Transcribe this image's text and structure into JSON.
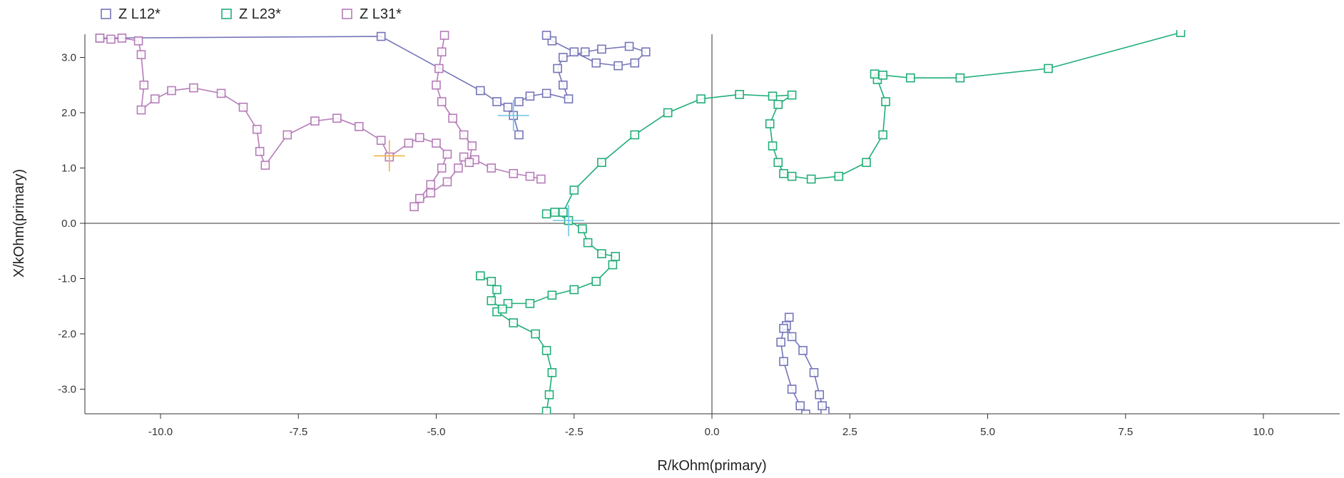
{
  "chart_data": {
    "type": "scatter",
    "title": "",
    "xlabel": "R/kOhm(primary)",
    "ylabel": "X/kOhm(primary)",
    "xlim": [
      -11.3,
      11.3
    ],
    "ylim": [
      -3.45,
      3.45
    ],
    "x_ticks": [
      "-10.0",
      "-7.5",
      "-5.0",
      "-2.5",
      "0.0",
      "2.5",
      "5.0",
      "7.5",
      "10.0"
    ],
    "x_tick_values": [
      -10,
      -7.5,
      -5,
      -2.5,
      0,
      2.5,
      5,
      7.5,
      10
    ],
    "y_ticks": [
      "3.0",
      "2.0",
      "1.0",
      "0.0",
      "-1.0",
      "-2.0",
      "-3.0"
    ],
    "y_tick_values": [
      3,
      2,
      1,
      0,
      -1,
      -2,
      -3
    ],
    "grid": false,
    "zero_lines": true,
    "legend_position": "top-left",
    "series": [
      {
        "name": "Z L12*",
        "color": "#7575b8",
        "marker": "square",
        "end_marker": {
          "x": -3.6,
          "y": 1.95,
          "color": "#6ec6e6"
        },
        "segments": [
          [
            [
              -11.1,
              3.35
            ],
            [
              -6.0,
              3.38
            ],
            [
              -4.2,
              2.4
            ],
            [
              -3.9,
              2.2
            ],
            [
              -3.7,
              2.1
            ],
            [
              -3.6,
              1.95
            ],
            [
              -3.5,
              1.6
            ]
          ],
          [
            [
              -3.5,
              2.2
            ],
            [
              -3.3,
              2.3
            ],
            [
              -3.0,
              2.35
            ],
            [
              -2.6,
              2.25
            ],
            [
              -2.7,
              2.5
            ],
            [
              -2.8,
              2.8
            ],
            [
              -2.7,
              3.0
            ],
            [
              -2.3,
              3.1
            ],
            [
              -2.0,
              3.15
            ],
            [
              -1.5,
              3.2
            ],
            [
              -1.2,
              3.1
            ],
            [
              -1.4,
              2.9
            ],
            [
              -1.7,
              2.85
            ],
            [
              -2.1,
              2.9
            ],
            [
              -2.5,
              3.1
            ],
            [
              -2.9,
              3.3
            ],
            [
              -3.0,
              3.4
            ]
          ],
          [
            [
              2.05,
              -3.4
            ],
            [
              2.0,
              -3.3
            ],
            [
              1.95,
              -3.1
            ],
            [
              1.85,
              -2.7
            ],
            [
              1.65,
              -2.3
            ],
            [
              1.45,
              -2.05
            ],
            [
              1.35,
              -1.85
            ],
            [
              1.4,
              -1.7
            ],
            [
              1.3,
              -1.9
            ],
            [
              1.25,
              -2.15
            ],
            [
              1.3,
              -2.5
            ],
            [
              1.45,
              -3.0
            ],
            [
              1.6,
              -3.3
            ],
            [
              1.7,
              -3.45
            ]
          ]
        ]
      },
      {
        "name": "Z L23*",
        "color": "#20ae78",
        "marker": "square",
        "end_marker": {
          "x": -2.6,
          "y": 0.05,
          "color": "#6ec6e6"
        },
        "segments": [
          [
            [
              -3.0,
              -3.4
            ],
            [
              -2.95,
              -3.1
            ],
            [
              -2.9,
              -2.7
            ],
            [
              -3.0,
              -2.3
            ],
            [
              -3.2,
              -2.0
            ],
            [
              -3.6,
              -1.8
            ],
            [
              -3.9,
              -1.6
            ],
            [
              -3.7,
              -1.45
            ],
            [
              -3.3,
              -1.45
            ],
            [
              -2.9,
              -1.3
            ],
            [
              -2.5,
              -1.2
            ],
            [
              -2.1,
              -1.05
            ],
            [
              -1.8,
              -0.75
            ],
            [
              -1.75,
              -0.6
            ],
            [
              -2.0,
              -0.55
            ],
            [
              -2.25,
              -0.35
            ],
            [
              -2.35,
              -0.1
            ],
            [
              -2.6,
              0.05
            ],
            [
              -2.85,
              0.2
            ],
            [
              -3.0,
              0.17
            ],
            [
              -2.7,
              0.2
            ],
            [
              -2.5,
              0.6
            ],
            [
              -2.0,
              1.1
            ],
            [
              -1.4,
              1.6
            ],
            [
              -0.8,
              2.0
            ],
            [
              -0.2,
              2.25
            ],
            [
              0.5,
              2.33
            ],
            [
              1.1,
              2.3
            ],
            [
              1.45,
              2.32
            ],
            [
              1.2,
              2.15
            ],
            [
              1.05,
              1.8
            ],
            [
              1.1,
              1.4
            ],
            [
              1.2,
              1.1
            ],
            [
              1.3,
              0.9
            ],
            [
              1.45,
              0.85
            ],
            [
              1.8,
              0.8
            ],
            [
              2.3,
              0.85
            ],
            [
              2.8,
              1.1
            ],
            [
              3.1,
              1.6
            ],
            [
              3.15,
              2.2
            ],
            [
              3.0,
              2.6
            ],
            [
              2.95,
              2.7
            ],
            [
              3.1,
              2.68
            ],
            [
              3.6,
              2.63
            ],
            [
              4.5,
              2.63
            ],
            [
              6.1,
              2.8
            ],
            [
              8.5,
              3.45
            ]
          ],
          [
            [
              -4.2,
              -0.95
            ],
            [
              -4.0,
              -1.05
            ],
            [
              -3.9,
              -1.2
            ],
            [
              -4.0,
              -1.4
            ],
            [
              -3.8,
              -1.55
            ]
          ]
        ]
      },
      {
        "name": "Z L31*",
        "color": "#b57cb8",
        "marker": "square",
        "end_marker": {
          "x": -5.85,
          "y": 1.22,
          "color": "#f0b24a"
        },
        "segments": [
          [
            [
              -11.1,
              3.35
            ],
            [
              -10.9,
              3.33
            ],
            [
              -10.7,
              3.35
            ],
            [
              -10.4,
              3.3
            ],
            [
              -10.35,
              3.05
            ],
            [
              -10.3,
              2.5
            ],
            [
              -10.35,
              2.05
            ],
            [
              -10.1,
              2.25
            ],
            [
              -9.8,
              2.4
            ],
            [
              -9.4,
              2.45
            ],
            [
              -8.9,
              2.35
            ],
            [
              -8.5,
              2.1
            ],
            [
              -8.25,
              1.7
            ],
            [
              -8.2,
              1.3
            ],
            [
              -8.1,
              1.05
            ],
            [
              -7.7,
              1.6
            ],
            [
              -7.2,
              1.85
            ],
            [
              -6.8,
              1.9
            ],
            [
              -6.4,
              1.75
            ],
            [
              -6.0,
              1.5
            ],
            [
              -5.85,
              1.2
            ],
            [
              -5.5,
              1.45
            ],
            [
              -5.3,
              1.55
            ],
            [
              -5.0,
              1.45
            ],
            [
              -4.8,
              1.25
            ],
            [
              -4.9,
              1.0
            ],
            [
              -5.1,
              0.7
            ],
            [
              -5.3,
              0.45
            ],
            [
              -5.4,
              0.3
            ],
            [
              -5.1,
              0.55
            ],
            [
              -4.8,
              0.75
            ],
            [
              -4.6,
              1.0
            ],
            [
              -4.5,
              1.2
            ],
            [
              -4.3,
              1.15
            ],
            [
              -4.0,
              1.0
            ],
            [
              -3.6,
              0.9
            ],
            [
              -3.3,
              0.85
            ],
            [
              -3.1,
              0.8
            ]
          ],
          [
            [
              -4.4,
              1.1
            ],
            [
              -4.35,
              1.4
            ],
            [
              -4.5,
              1.6
            ],
            [
              -4.7,
              1.9
            ],
            [
              -4.9,
              2.2
            ],
            [
              -5.0,
              2.5
            ],
            [
              -4.95,
              2.8
            ],
            [
              -4.9,
              3.1
            ],
            [
              -4.85,
              3.4
            ]
          ]
        ]
      }
    ]
  }
}
